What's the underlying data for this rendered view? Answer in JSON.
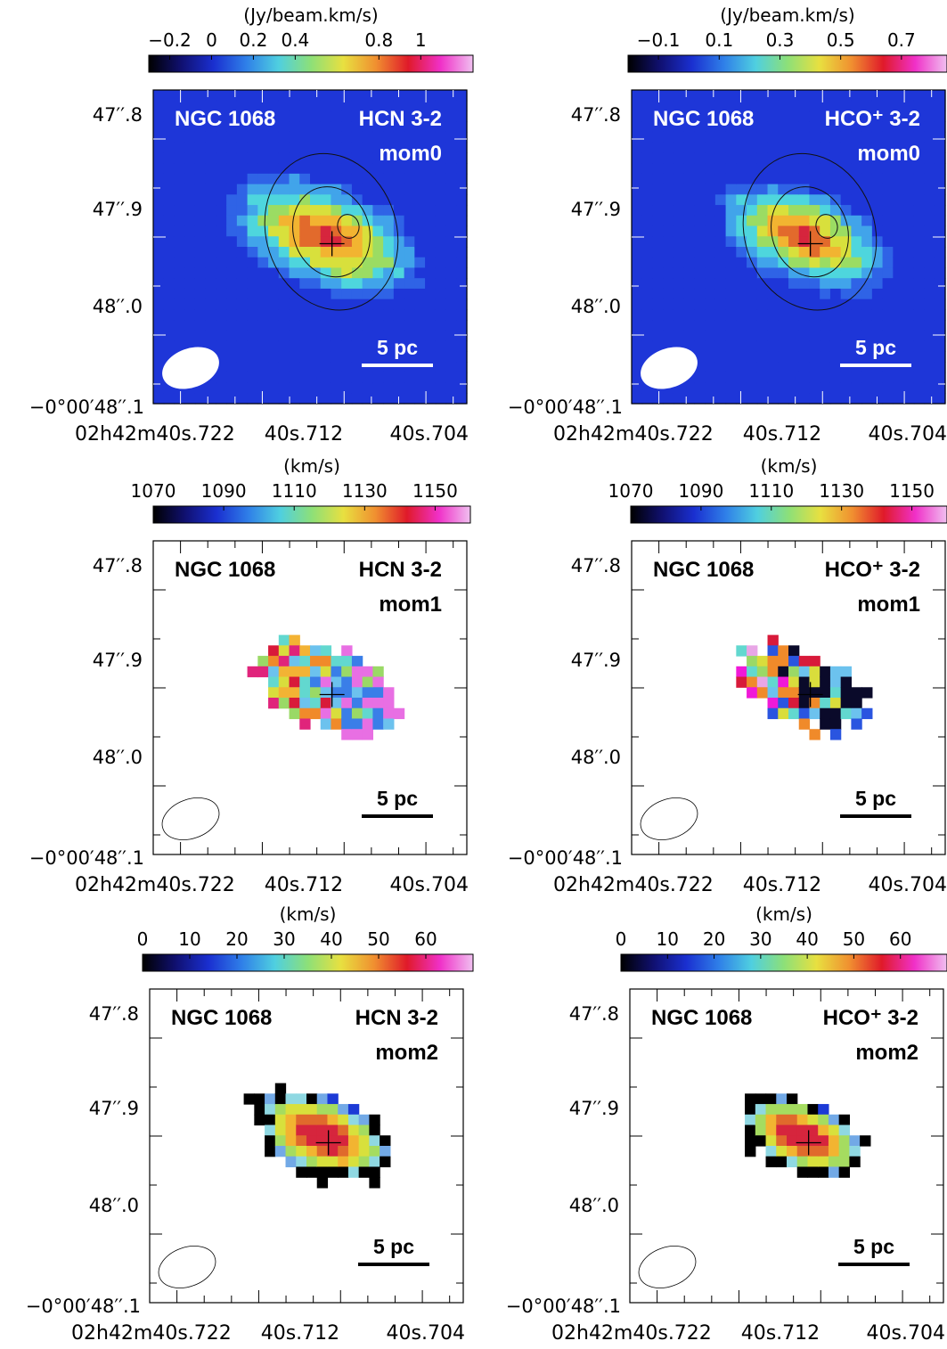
{
  "panels": [
    {
      "id": "hcn-mom0",
      "moment": "mom0",
      "galaxy": "NGC 1068",
      "line": "HCN 3-2",
      "colorbar": {
        "unit": "(Jy/beam.km/s)",
        "ticks": [
          "−0.2",
          "0",
          "0.2",
          "0.4",
          "0.8",
          "1"
        ],
        "tick_values": [
          -0.2,
          0,
          0.2,
          0.4,
          0.8,
          1.0
        ],
        "range": [
          -0.3,
          1.25
        ]
      },
      "y_labels": [
        "47′′.8",
        "47′′.9",
        "48′′.0",
        "−0°00′48′′.1"
      ],
      "x_labels": [
        "02h42m40s.722",
        "40s.712",
        "40s.704"
      ],
      "scalebar": "5 pc",
      "background": "map",
      "image_colors": [
        "#1e36d8",
        "#2f63e6",
        "#41a4ea",
        "#4ed6dd",
        "#9bdc63",
        "#d8e03c",
        "#f2b431",
        "#e26a2c",
        "#d6253d"
      ]
    },
    {
      "id": "hcop-mom0",
      "moment": "mom0",
      "galaxy": "NGC 1068",
      "line": "HCO⁺ 3-2",
      "colorbar": {
        "unit": "(Jy/beam.km/s)",
        "ticks": [
          "−0.1",
          "0.1",
          "0.3",
          "0.5",
          "0.7"
        ],
        "tick_values": [
          -0.1,
          0.1,
          0.3,
          0.5,
          0.7
        ],
        "range": [
          -0.2,
          0.85
        ]
      },
      "y_labels": [
        "47′′.8",
        "47′′.9",
        "48′′.0",
        "−0°00′48′′.1"
      ],
      "x_labels": [
        "02h42m40s.722",
        "40s.712",
        "40s.704"
      ],
      "scalebar": "5 pc",
      "background": "map",
      "image_colors": [
        "#1e36d8",
        "#2f63e6",
        "#41a4ea",
        "#4ed6dd",
        "#9bdc63",
        "#d8e03c",
        "#f2b431",
        "#e26a2c",
        "#d6253d"
      ]
    },
    {
      "id": "hcn-mom1",
      "moment": "mom1",
      "galaxy": "NGC 1068",
      "line": "HCN 3-2",
      "colorbar": {
        "unit": "(km/s)",
        "ticks": [
          "1070",
          "1090",
          "1110",
          "1130",
          "1150"
        ],
        "tick_values": [
          1070,
          1090,
          1110,
          1130,
          1150
        ],
        "range": [
          1070,
          1160
        ]
      },
      "y_labels": [
        "47′′.8",
        "47′′.9",
        "48′′.0",
        "−0°00′48′′.1"
      ],
      "x_labels": [
        "02h42m40s.722",
        "40s.712",
        "40s.704"
      ],
      "scalebar": "5 pc",
      "background": "white",
      "image_colors": [
        "#e0247b",
        "#d81a3a",
        "#f08a2a",
        "#f3b334",
        "#d9dd3c",
        "#9ad966",
        "#62d8cf",
        "#6cc2ee",
        "#3a7ee8",
        "#e86fe3"
      ]
    },
    {
      "id": "hcop-mom1",
      "moment": "mom1",
      "galaxy": "NGC 1068",
      "line": "HCO⁺ 3-2",
      "colorbar": {
        "unit": "(km/s)",
        "ticks": [
          "1070",
          "1090",
          "1110",
          "1130",
          "1150"
        ],
        "tick_values": [
          1070,
          1090,
          1110,
          1130,
          1150
        ],
        "range": [
          1070,
          1160
        ]
      },
      "y_labels": [
        "47′′.8",
        "47′′.9",
        "48′′.0",
        "−0°00′48′′.1"
      ],
      "x_labels": [
        "02h42m40s.722",
        "40s.712",
        "40s.704"
      ],
      "scalebar": "5 pc",
      "background": "white",
      "image_colors": [
        "#f019d8",
        "#e8a6e6",
        "#d81a3a",
        "#f08a2a",
        "#d9dd3c",
        "#9ad966",
        "#62d8cf",
        "#6cc2ee",
        "#2a55e0",
        "#0a0a2a"
      ]
    },
    {
      "id": "hcn-mom2",
      "moment": "mom2",
      "galaxy": "NGC 1068",
      "line": "HCN 3-2",
      "colorbar": {
        "unit": "(km/s)",
        "ticks": [
          "0",
          "10",
          "20",
          "30",
          "40",
          "50",
          "60"
        ],
        "tick_values": [
          0,
          10,
          20,
          30,
          40,
          50,
          60
        ],
        "range": [
          0,
          70
        ]
      },
      "y_labels": [
        "47′′.8",
        "47′′.9",
        "48′′.0",
        "−0°00′48′′.1"
      ],
      "x_labels": [
        "02h42m40s.722",
        "40s.712",
        "40s.704"
      ],
      "scalebar": "5 pc",
      "background": "white",
      "image_colors": [
        "#000000",
        "#1c3ad6",
        "#72a9e6",
        "#8fd8e2",
        "#a5dc60",
        "#d8e03c",
        "#f2b431",
        "#e06a2c",
        "#d6253d"
      ]
    },
    {
      "id": "hcop-mom2",
      "moment": "mom2",
      "galaxy": "NGC 1068",
      "line": "HCO⁺ 3-2",
      "colorbar": {
        "unit": "(km/s)",
        "ticks": [
          "0",
          "10",
          "20",
          "30",
          "40",
          "50",
          "60"
        ],
        "tick_values": [
          0,
          10,
          20,
          30,
          40,
          50,
          60
        ],
        "range": [
          0,
          70
        ]
      },
      "y_labels": [
        "47′′.8",
        "47′′.9",
        "48′′.0",
        "−0°00′48′′.1"
      ],
      "x_labels": [
        "02h42m40s.722",
        "40s.712",
        "40s.704"
      ],
      "scalebar": "5 pc",
      "background": "white",
      "image_colors": [
        "#000000",
        "#1c3ad6",
        "#72a9e6",
        "#8fd8e2",
        "#a5dc60",
        "#d8e03c",
        "#f2b431",
        "#e06a2c",
        "#d6253d"
      ]
    }
  ],
  "colormap": [
    "#000000",
    "#101070",
    "#1a2fd0",
    "#2f7fe8",
    "#4fcfe0",
    "#8de078",
    "#e8e040",
    "#f09030",
    "#e01a2a",
    "#f030c8",
    "#f0c0f0"
  ]
}
